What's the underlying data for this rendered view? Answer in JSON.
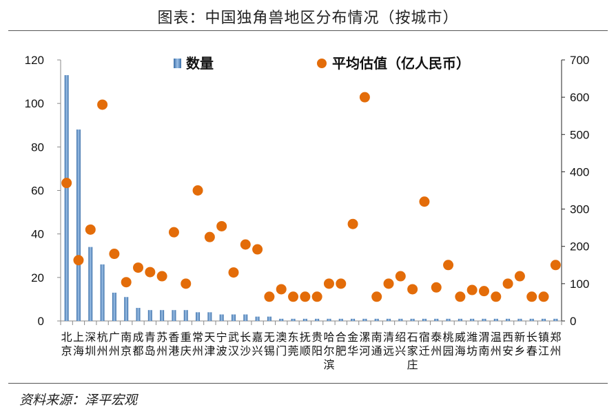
{
  "title": "图表：中国独角兽地区分布情况（按城市）",
  "source": "资料来源：泽平宏观",
  "chart_data": {
    "type": "bar+scatter",
    "categories": [
      "北京",
      "上海",
      "深圳",
      "杭州",
      "广州",
      "南京",
      "成都",
      "青岛",
      "苏州",
      "香港",
      "重庆",
      "常州",
      "天津",
      "宁波",
      "武汉",
      "长沙",
      "嘉兴",
      "无锡",
      "澳门",
      "东莞",
      "抚顺",
      "贵阳",
      "哈尔滨",
      "合肥",
      "金华",
      "漯河",
      "南通",
      "清远",
      "绍兴",
      "石家庄",
      "宿迁",
      "泰州",
      "桃园",
      "威海",
      "潍坊",
      "渭南",
      "温州",
      "西安",
      "新乡",
      "长春",
      "镇江",
      "郑州"
    ],
    "series": [
      {
        "name": "数量",
        "type": "bar",
        "axis": "left",
        "color": "#4f81bd",
        "values": [
          113,
          88,
          34,
          26,
          13,
          11,
          6,
          5,
          5,
          5,
          5,
          4,
          4,
          3,
          3,
          3,
          2,
          2,
          1,
          1,
          1,
          1,
          1,
          1,
          1,
          1,
          1,
          1,
          1,
          1,
          1,
          1,
          1,
          1,
          1,
          1,
          1,
          1,
          1,
          1,
          1,
          1
        ]
      },
      {
        "name": "平均估值（亿人民币）",
        "type": "scatter",
        "axis": "right",
        "color": "#e36c09",
        "values": [
          370,
          163,
          245,
          580,
          180,
          104,
          143,
          131,
          120,
          238,
          100,
          350,
          225,
          254,
          130,
          205,
          192,
          65,
          85,
          65,
          65,
          65,
          100,
          100,
          260,
          600,
          65,
          100,
          120,
          85,
          320,
          90,
          150,
          65,
          83,
          80,
          65,
          100,
          120,
          65,
          65,
          150
        ]
      }
    ],
    "y_left": {
      "range": [
        0,
        120
      ],
      "ticks": [
        "0",
        "20",
        "40",
        "60",
        "80",
        "100",
        "120"
      ]
    },
    "y_right": {
      "range": [
        0,
        700
      ],
      "ticks": [
        "0",
        "100",
        "200",
        "300",
        "400",
        "500",
        "600",
        "700"
      ]
    },
    "legend": "top",
    "grid": false
  }
}
